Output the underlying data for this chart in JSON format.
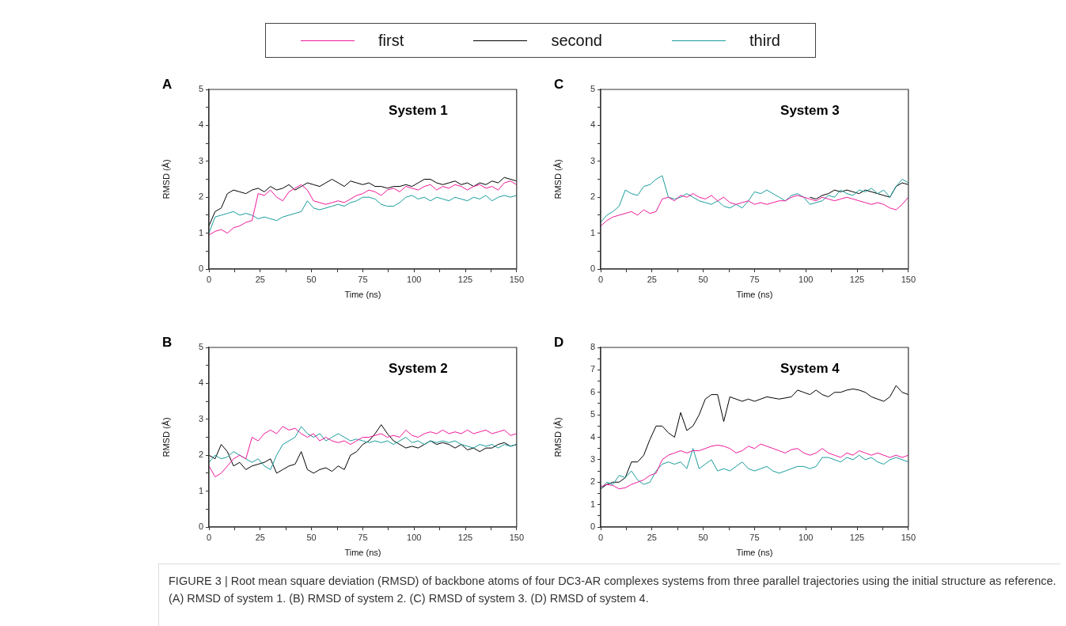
{
  "chart_data": [
    {
      "type": "line",
      "title": "A",
      "subtitle": "System 1",
      "xlabel": "Time (ns)",
      "ylabel": "RMSD (Å)",
      "legend": "top",
      "annotations": [
        "FIGURE 3 | Root mean square deviation (RMSD) of backbone atoms of four DC3-AR complexes systems from three parallel trajectories using the initial structure as reference. (A) RMSD of system 1. (B) RMSD of system 2. (C) RMSD of system 3. (D) RMSD of system 4."
      ],
      "xlim": [
        0,
        150
      ],
      "xticks": [
        0,
        {
          "value": 12.5,
          "label": null
        },
        25,
        {
          "value": 37.5,
          "label": null
        },
        50,
        {
          "value": 62.5,
          "label": null
        },
        75,
        {
          "value": 87.5,
          "label": null
        },
        100,
        {
          "value": 112.5,
          "label": null
        },
        125,
        {
          "value": 137.5,
          "label": null
        },
        150
      ],
      "ylim": [
        0,
        5
      ],
      "yticks": [
        0,
        {
          "value": 0.5,
          "label": null
        },
        1,
        {
          "value": 1.5,
          "label": null
        },
        2,
        {
          "value": 2.5,
          "label": null
        },
        3,
        {
          "value": 3.5,
          "label": null
        },
        4,
        {
          "value": 4.5,
          "label": null
        },
        5
      ],
      "x": [
        0,
        3,
        6,
        9,
        12,
        15,
        18,
        21,
        24,
        27,
        30,
        33,
        36,
        39,
        42,
        45,
        48,
        51,
        54,
        57,
        60,
        63,
        66,
        69,
        72,
        75,
        78,
        81,
        84,
        87,
        90,
        93,
        96,
        99,
        102,
        105,
        108,
        111,
        114,
        117,
        120,
        123,
        126,
        129,
        132,
        135,
        138,
        141,
        144,
        147,
        150
      ],
      "series": [
        {
          "name": "first",
          "color": "#f0199b",
          "values": [
            0.95,
            1.05,
            1.1,
            1.0,
            1.15,
            1.2,
            1.3,
            1.35,
            2.1,
            2.05,
            2.2,
            2.0,
            1.9,
            2.15,
            2.25,
            2.35,
            2.2,
            1.9,
            1.85,
            1.8,
            1.85,
            1.9,
            1.85,
            1.95,
            2.05,
            2.1,
            2.2,
            2.15,
            2.05,
            2.2,
            2.25,
            2.15,
            2.3,
            2.25,
            2.2,
            2.3,
            2.35,
            2.2,
            2.3,
            2.25,
            2.35,
            2.3,
            2.2,
            2.3,
            2.35,
            2.25,
            2.3,
            2.2,
            2.4,
            2.45,
            2.35
          ]
        },
        {
          "name": "second",
          "color": "#000000",
          "values": [
            1.2,
            1.6,
            1.7,
            2.1,
            2.2,
            2.15,
            2.1,
            2.2,
            2.25,
            2.15,
            2.3,
            2.2,
            2.25,
            2.35,
            2.2,
            2.3,
            2.4,
            2.35,
            2.3,
            2.4,
            2.5,
            2.4,
            2.3,
            2.45,
            2.4,
            2.35,
            2.4,
            2.3,
            2.3,
            2.25,
            2.3,
            2.3,
            2.35,
            2.3,
            2.4,
            2.5,
            2.5,
            2.4,
            2.35,
            2.4,
            2.45,
            2.35,
            2.4,
            2.3,
            2.4,
            2.35,
            2.45,
            2.4,
            2.55,
            2.5,
            2.45
          ]
        },
        {
          "name": "third",
          "color": "#1a9c9c",
          "values": [
            1.0,
            1.45,
            1.5,
            1.55,
            1.6,
            1.5,
            1.55,
            1.5,
            1.4,
            1.45,
            1.4,
            1.35,
            1.45,
            1.5,
            1.55,
            1.6,
            1.9,
            1.7,
            1.65,
            1.7,
            1.75,
            1.8,
            1.75,
            1.85,
            1.9,
            2.0,
            2.0,
            1.95,
            1.8,
            1.75,
            1.75,
            1.85,
            2.0,
            2.05,
            1.95,
            2.0,
            1.9,
            2.0,
            1.95,
            1.9,
            2.0,
            1.95,
            1.9,
            2.0,
            1.95,
            2.05,
            1.9,
            2.0,
            2.05,
            2.0,
            2.05
          ]
        }
      ]
    },
    {
      "type": "line",
      "title": "C",
      "subtitle": "System 3",
      "xlabel": "Time (ns)",
      "ylabel": "RMSD (Å)",
      "xlim": [
        0,
        150
      ],
      "xticks": [
        0,
        {
          "value": 12.5,
          "label": null
        },
        25,
        {
          "value": 37.5,
          "label": null
        },
        50,
        {
          "value": 62.5,
          "label": null
        },
        75,
        {
          "value": 87.5,
          "label": null
        },
        100,
        {
          "value": 112.5,
          "label": null
        },
        125,
        {
          "value": 137.5,
          "label": null
        },
        150
      ],
      "ylim": [
        0,
        5
      ],
      "yticks": [
        0,
        {
          "value": 0.5,
          "label": null
        },
        1,
        {
          "value": 1.5,
          "label": null
        },
        2,
        {
          "value": 2.5,
          "label": null
        },
        3,
        {
          "value": 3.5,
          "label": null
        },
        4,
        {
          "value": 4.5,
          "label": null
        },
        5
      ],
      "x": [
        0,
        3,
        6,
        9,
        12,
        15,
        18,
        21,
        24,
        27,
        30,
        33,
        36,
        39,
        42,
        45,
        48,
        51,
        54,
        57,
        60,
        63,
        66,
        69,
        72,
        75,
        78,
        81,
        84,
        87,
        90,
        93,
        96,
        99,
        102,
        105,
        108,
        111,
        114,
        117,
        120,
        123,
        126,
        129,
        132,
        135,
        138,
        141,
        144,
        147,
        150
      ],
      "series": [
        {
          "color": "#f0199b",
          "values": [
            1.2,
            1.35,
            1.45,
            1.5,
            1.55,
            1.6,
            1.5,
            1.65,
            1.55,
            1.6,
            1.95,
            2.0,
            1.9,
            2.05,
            2.0,
            2.1,
            2.0,
            1.95,
            2.05,
            1.9,
            2.0,
            1.85,
            1.8,
            1.85,
            1.9,
            1.8,
            1.85,
            1.8,
            1.85,
            1.9,
            1.9,
            2.0,
            2.05,
            2.0,
            1.95,
            1.9,
            2.0,
            1.95,
            1.9,
            1.95,
            2.0,
            1.95,
            1.9,
            1.85,
            1.8,
            1.85,
            1.8,
            1.7,
            1.65,
            1.8,
            2.0
          ]
        },
        {
          "color": "#000000",
          "values": [
            null,
            null,
            null,
            null,
            null,
            null,
            null,
            null,
            null,
            null,
            null,
            null,
            null,
            null,
            null,
            null,
            null,
            null,
            null,
            null,
            null,
            null,
            null,
            null,
            null,
            null,
            null,
            null,
            null,
            null,
            null,
            null,
            null,
            null,
            2.0,
            1.95,
            2.05,
            2.1,
            2.2,
            2.15,
            2.2,
            2.15,
            2.1,
            2.2,
            2.15,
            2.1,
            2.05,
            2.0,
            2.3,
            2.4,
            2.35
          ]
        },
        {
          "color": "#1a9c9c",
          "values": [
            1.3,
            1.5,
            1.6,
            1.75,
            2.2,
            2.1,
            2.05,
            2.3,
            2.35,
            2.5,
            2.6,
            2.0,
            1.95,
            2.0,
            2.1,
            2.0,
            1.9,
            1.85,
            1.8,
            1.9,
            1.75,
            1.7,
            1.8,
            1.7,
            1.9,
            2.15,
            2.1,
            2.2,
            2.1,
            2.0,
            1.9,
            2.05,
            2.1,
            2.0,
            1.8,
            1.85,
            1.9,
            2.05,
            2.0,
            2.2,
            2.1,
            2.05,
            2.2,
            2.15,
            2.25,
            2.1,
            2.2,
            2.0,
            2.3,
            2.5,
            2.4
          ]
        }
      ]
    },
    {
      "type": "line",
      "title": "B",
      "subtitle": "System 2",
      "xlabel": "Time (ns)",
      "ylabel": "RMSD (Å)",
      "xlim": [
        0,
        150
      ],
      "xticks": [
        0,
        {
          "value": 12.5,
          "label": null
        },
        25,
        {
          "value": 37.5,
          "label": null
        },
        50,
        {
          "value": 62.5,
          "label": null
        },
        75,
        {
          "value": 87.5,
          "label": null
        },
        100,
        {
          "value": 112.5,
          "label": null
        },
        125,
        {
          "value": 137.5,
          "label": null
        },
        150
      ],
      "ylim": [
        0,
        5
      ],
      "yticks": [
        0,
        {
          "value": 0.5,
          "label": null
        },
        1,
        {
          "value": 1.5,
          "label": null
        },
        2,
        {
          "value": 2.5,
          "label": null
        },
        3,
        {
          "value": 3.5,
          "label": null
        },
        4,
        {
          "value": 4.5,
          "label": null
        },
        5
      ],
      "x": [
        0,
        3,
        6,
        9,
        12,
        15,
        18,
        21,
        24,
        27,
        30,
        33,
        36,
        39,
        42,
        45,
        48,
        51,
        54,
        57,
        60,
        63,
        66,
        69,
        72,
        75,
        78,
        81,
        84,
        87,
        90,
        93,
        96,
        99,
        102,
        105,
        108,
        111,
        114,
        117,
        120,
        123,
        126,
        129,
        132,
        135,
        138,
        141,
        144,
        147,
        150
      ],
      "series": [
        {
          "color": "#f0199b",
          "values": [
            1.7,
            1.4,
            1.5,
            1.7,
            1.9,
            2.0,
            1.9,
            2.5,
            2.4,
            2.6,
            2.7,
            2.6,
            2.8,
            2.7,
            2.75,
            2.6,
            2.5,
            2.6,
            2.4,
            2.5,
            2.4,
            2.35,
            2.4,
            2.3,
            2.4,
            2.5,
            2.5,
            2.55,
            2.6,
            2.5,
            2.55,
            2.5,
            2.7,
            2.55,
            2.5,
            2.6,
            2.65,
            2.6,
            2.7,
            2.6,
            2.65,
            2.6,
            2.7,
            2.6,
            2.65,
            2.7,
            2.6,
            2.65,
            2.7,
            2.55,
            2.6
          ]
        },
        {
          "color": "#000000",
          "values": [
            2.0,
            1.9,
            2.3,
            2.1,
            1.7,
            1.8,
            1.6,
            1.7,
            1.75,
            1.8,
            1.9,
            1.5,
            1.6,
            1.7,
            1.75,
            2.1,
            1.6,
            1.5,
            1.6,
            1.65,
            1.55,
            1.7,
            1.6,
            2.0,
            2.1,
            2.3,
            2.4,
            2.6,
            2.85,
            2.6,
            2.4,
            2.3,
            2.2,
            2.25,
            2.2,
            2.3,
            2.4,
            2.3,
            2.35,
            2.3,
            2.2,
            2.3,
            2.15,
            2.2,
            2.1,
            2.2,
            2.2,
            2.3,
            2.35,
            2.25,
            2.3
          ]
        },
        {
          "color": "#1a9c9c",
          "values": [
            1.8,
            2.0,
            1.9,
            1.95,
            2.1,
            2.0,
            1.9,
            1.8,
            1.9,
            1.7,
            1.6,
            2.0,
            2.3,
            2.4,
            2.5,
            2.8,
            2.6,
            2.5,
            2.6,
            2.4,
            2.5,
            2.6,
            2.5,
            2.4,
            2.45,
            2.4,
            2.35,
            2.4,
            2.35,
            2.4,
            2.3,
            2.4,
            2.5,
            2.35,
            2.4,
            2.3,
            2.4,
            2.35,
            2.4,
            2.35,
            2.4,
            2.3,
            2.25,
            2.2,
            2.3,
            2.25,
            2.3,
            2.2,
            2.3,
            2.25,
            2.3
          ]
        }
      ]
    },
    {
      "type": "line",
      "title": "D",
      "subtitle": "System 4",
      "xlabel": "Time (ns)",
      "ylabel": "RMSD (Å)",
      "xlim": [
        0,
        150
      ],
      "xticks": [
        0,
        {
          "value": 12.5,
          "label": null
        },
        25,
        {
          "value": 37.5,
          "label": null
        },
        50,
        {
          "value": 62.5,
          "label": null
        },
        75,
        {
          "value": 87.5,
          "label": null
        },
        100,
        {
          "value": 112.5,
          "label": null
        },
        125,
        {
          "value": 137.5,
          "label": null
        },
        150
      ],
      "ylim": [
        0,
        8
      ],
      "yticks": [
        0,
        {
          "value": 0.5,
          "label": null
        },
        1,
        {
          "value": 1.5,
          "label": null
        },
        2,
        {
          "value": 2.5,
          "label": null
        },
        3,
        {
          "value": 3.5,
          "label": null
        },
        4,
        {
          "value": 4.5,
          "label": null
        },
        5,
        {
          "value": 5.5,
          "label": null
        },
        6,
        {
          "value": 6.5,
          "label": null
        },
        7,
        {
          "value": 7.5,
          "label": null
        },
        8
      ],
      "x": [
        0,
        3,
        6,
        9,
        12,
        15,
        18,
        21,
        24,
        27,
        30,
        33,
        36,
        39,
        42,
        45,
        48,
        51,
        54,
        57,
        60,
        63,
        66,
        69,
        72,
        75,
        78,
        81,
        84,
        87,
        90,
        93,
        96,
        99,
        102,
        105,
        108,
        111,
        114,
        117,
        120,
        123,
        126,
        129,
        132,
        135,
        138,
        141,
        144,
        147,
        150
      ],
      "series": [
        {
          "color": "#f0199b",
          "values": [
            1.8,
            1.9,
            1.85,
            1.7,
            1.75,
            1.9,
            2.0,
            2.1,
            2.3,
            2.4,
            3.0,
            3.2,
            3.3,
            3.4,
            3.3,
            3.4,
            3.4,
            3.5,
            3.6,
            3.65,
            3.6,
            3.5,
            3.3,
            3.4,
            3.6,
            3.5,
            3.7,
            3.6,
            3.5,
            3.4,
            3.3,
            3.45,
            3.5,
            3.3,
            3.2,
            3.3,
            3.5,
            3.3,
            3.2,
            3.1,
            3.3,
            3.2,
            3.4,
            3.3,
            3.2,
            3.3,
            3.2,
            3.1,
            3.2,
            3.1,
            3.2
          ]
        },
        {
          "color": "#000000",
          "values": [
            1.7,
            1.9,
            2.0,
            2.0,
            2.2,
            2.9,
            2.9,
            3.2,
            3.9,
            4.5,
            4.5,
            4.2,
            4.0,
            5.1,
            4.3,
            4.5,
            5.0,
            5.7,
            5.9,
            5.9,
            4.7,
            5.8,
            5.7,
            5.6,
            5.7,
            5.6,
            5.7,
            5.8,
            5.75,
            5.7,
            5.75,
            5.8,
            6.1,
            6.0,
            5.9,
            6.1,
            5.9,
            5.8,
            6.0,
            6.0,
            6.1,
            6.15,
            6.1,
            6.0,
            5.8,
            5.7,
            5.6,
            5.8,
            6.3,
            6.0,
            5.9
          ]
        },
        {
          "color": "#1a9c9c",
          "values": [
            1.7,
            2.0,
            1.9,
            2.3,
            2.2,
            2.5,
            2.1,
            1.9,
            2.0,
            2.5,
            2.8,
            2.9,
            2.8,
            2.9,
            2.6,
            3.5,
            2.6,
            2.8,
            3.0,
            2.5,
            2.6,
            2.5,
            2.7,
            2.9,
            2.6,
            2.5,
            2.6,
            2.7,
            2.5,
            2.4,
            2.5,
            2.6,
            2.7,
            2.7,
            2.6,
            2.7,
            3.1,
            3.1,
            3.0,
            2.9,
            3.1,
            3.0,
            3.2,
            3.0,
            3.1,
            2.9,
            2.8,
            3.0,
            3.1,
            3.0,
            2.9
          ]
        }
      ]
    }
  ]
}
